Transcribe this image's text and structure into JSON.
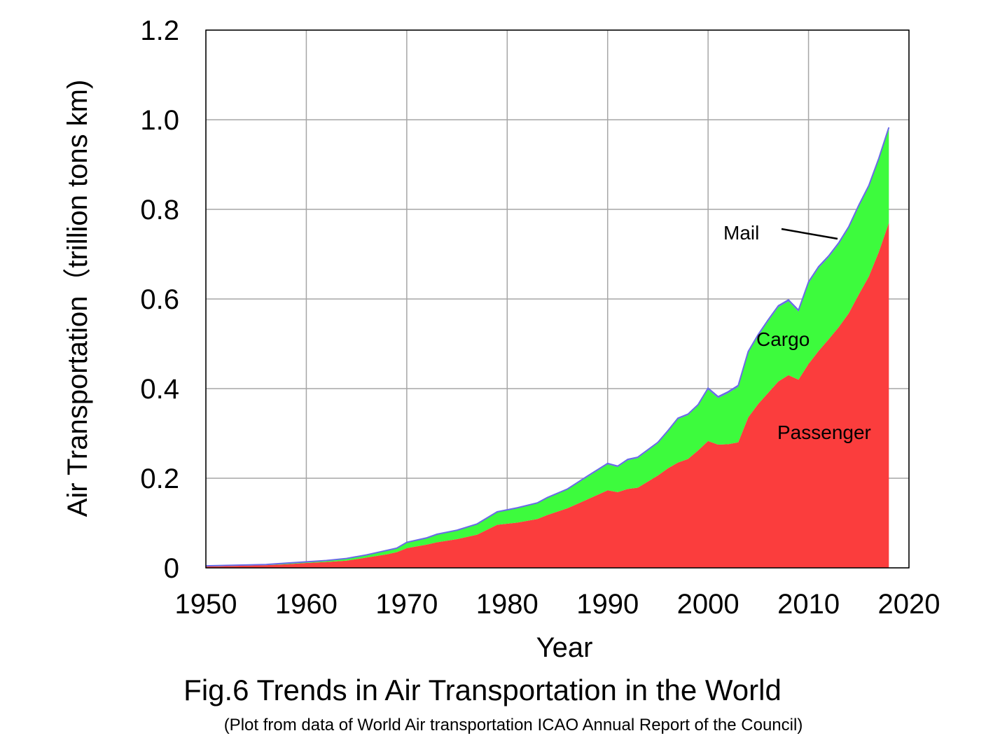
{
  "figure": {
    "caption": "Fig.6 Trends in Air Transportation in the World",
    "source_note": "(Plot from data of World Air transportation ICAO Annual Report of the Council)"
  },
  "colors": {
    "passenger": "#fb3d3d",
    "cargo": "#3dfb3d",
    "mail_line": "#6a6ae8",
    "grid": "#a6a6a6",
    "axis": "#000000"
  },
  "chart_data": {
    "type": "area",
    "stacked": true,
    "title": "",
    "xlabel": "Year",
    "ylabel": "Air Transportation（trillion tons km)",
    "xlim": [
      1950,
      2020
    ],
    "ylim": [
      0,
      1.2
    ],
    "x_ticks": [
      1950,
      1960,
      1970,
      1980,
      1990,
      2000,
      2010,
      2020
    ],
    "x_tick_labels": [
      "1950",
      "1960",
      "1970",
      "1980",
      "1990",
      "2000",
      "2010",
      "2020"
    ],
    "y_ticks": [
      0,
      0.2,
      0.4,
      0.6,
      0.8,
      1.0,
      1.2
    ],
    "y_tick_labels": [
      "0",
      "0.2",
      "0.4",
      "0.6",
      "0.8",
      "1.0",
      "1.2"
    ],
    "grid": true,
    "annotations": [
      "Mail",
      "Cargo",
      "Passenger"
    ],
    "x": [
      1950,
      1952,
      1954,
      1956,
      1958,
      1960,
      1962,
      1964,
      1966,
      1968,
      1969,
      1970,
      1972,
      1973,
      1975,
      1977,
      1979,
      1981,
      1983,
      1984,
      1986,
      1988,
      1990,
      1991,
      1992,
      1993,
      1995,
      1996,
      1997,
      1998,
      1999,
      2000,
      2001,
      2002,
      2003,
      2004,
      2005,
      2006,
      2007,
      2008,
      2009,
      2010,
      2011,
      2012,
      2013,
      2014,
      2015,
      2016,
      2017,
      2018
    ],
    "series": [
      {
        "name": "Passenger",
        "values": [
          0.003,
          0.004,
          0.005,
          0.006,
          0.008,
          0.011,
          0.013,
          0.016,
          0.023,
          0.03,
          0.035,
          0.044,
          0.052,
          0.057,
          0.064,
          0.074,
          0.096,
          0.101,
          0.109,
          0.118,
          0.133,
          0.153,
          0.173,
          0.169,
          0.176,
          0.179,
          0.206,
          0.222,
          0.235,
          0.243,
          0.262,
          0.283,
          0.275,
          0.276,
          0.28,
          0.336,
          0.366,
          0.391,
          0.416,
          0.43,
          0.42,
          0.455,
          0.484,
          0.51,
          0.537,
          0.568,
          0.61,
          0.65,
          0.705,
          0.77
        ]
      },
      {
        "name": "Cargo",
        "values": [
          0.001,
          0.001,
          0.001,
          0.001,
          0.002,
          0.002,
          0.003,
          0.004,
          0.005,
          0.008,
          0.008,
          0.012,
          0.014,
          0.017,
          0.019,
          0.023,
          0.028,
          0.032,
          0.035,
          0.038,
          0.042,
          0.05,
          0.058,
          0.056,
          0.064,
          0.066,
          0.072,
          0.082,
          0.097,
          0.098,
          0.1,
          0.115,
          0.104,
          0.114,
          0.124,
          0.144,
          0.152,
          0.16,
          0.166,
          0.165,
          0.152,
          0.18,
          0.185,
          0.183,
          0.185,
          0.19,
          0.196,
          0.2,
          0.206,
          0.21
        ]
      },
      {
        "name": "Mail",
        "values": [
          0.0005,
          0.0005,
          0.0005,
          0.0005,
          0.0005,
          0.0005,
          0.0005,
          0.001,
          0.001,
          0.001,
          0.001,
          0.001,
          0.001,
          0.001,
          0.001,
          0.001,
          0.001,
          0.001,
          0.001,
          0.001,
          0.001,
          0.002,
          0.002,
          0.002,
          0.002,
          0.002,
          0.002,
          0.002,
          0.002,
          0.002,
          0.002,
          0.003,
          0.003,
          0.003,
          0.003,
          0.003,
          0.003,
          0.003,
          0.003,
          0.003,
          0.003,
          0.003,
          0.003,
          0.003,
          0.003,
          0.003,
          0.003,
          0.003,
          0.003,
          0.003
        ]
      }
    ]
  }
}
